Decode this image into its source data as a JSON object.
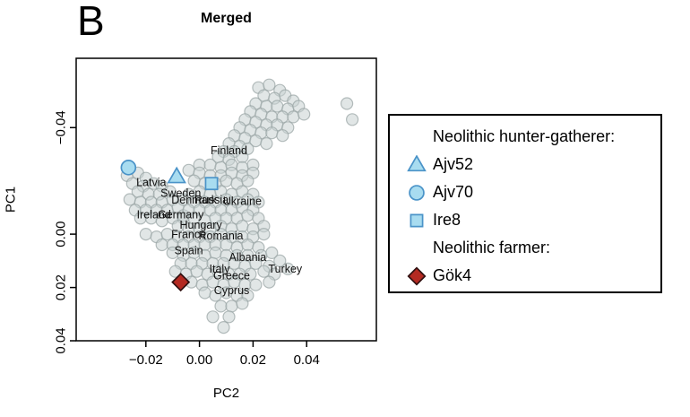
{
  "panel_label": "B",
  "title": "Merged",
  "axes": {
    "x_label": "PC2",
    "y_label": "PC1",
    "x_ticks": [
      "−0.02",
      "0.00",
      "0.02",
      "0.04"
    ],
    "x_tick_values": [
      -0.02,
      0.0,
      0.02,
      0.04
    ],
    "y_ticks": [
      "−0.04",
      "0.00",
      "0.02",
      "0.04"
    ],
    "y_tick_values": [
      -0.04,
      0.0,
      0.02,
      0.04
    ],
    "y_axis_reversed": true
  },
  "legend": {
    "rows": [
      {
        "type": "header",
        "label": "Neolithic hunter-gatherer:"
      },
      {
        "type": "item",
        "shape": "triangle",
        "label": "Ajv52"
      },
      {
        "type": "item",
        "shape": "circle",
        "label": "Ajv70"
      },
      {
        "type": "item",
        "shape": "square",
        "label": "Ire8"
      },
      {
        "type": "header",
        "label": "Neolithic farmer:"
      },
      {
        "type": "item",
        "shape": "diamond",
        "label": "Gök4"
      }
    ]
  },
  "colors": {
    "hg_fill": "#a8dcf0",
    "hg_stroke": "#4a93c8",
    "farmer_fill": "#b42a22",
    "farmer_stroke": "#301010",
    "bg_fill": "#c9d1d1",
    "bg_stroke": "#97a2a2",
    "axis": "#000000"
  },
  "chart_data": {
    "type": "scatter",
    "title": "Merged",
    "xlabel": "PC2",
    "ylabel": "PC1",
    "xlim": [
      -0.046,
      0.066
    ],
    "ylim": [
      -0.066,
      0.04
    ],
    "y_inverted": true,
    "highlight_points": [
      {
        "id": "Ajv52",
        "shape": "triangle",
        "x": -0.0085,
        "y": -0.0215,
        "group": "Neolithic hunter-gatherer"
      },
      {
        "id": "Ajv70",
        "shape": "circle",
        "x": -0.0265,
        "y": -0.025,
        "group": "Neolithic hunter-gatherer"
      },
      {
        "id": "Ire8",
        "shape": "square",
        "x": 0.0045,
        "y": -0.019,
        "group": "Neolithic hunter-gatherer"
      },
      {
        "id": "Gök4",
        "shape": "diamond",
        "x": -0.007,
        "y": 0.018,
        "group": "Neolithic farmer"
      }
    ],
    "country_labels": [
      {
        "name": "Finland",
        "x": 0.011,
        "y": -0.03
      },
      {
        "name": "Latvia",
        "x": -0.018,
        "y": -0.018
      },
      {
        "name": "Sweden",
        "x": -0.007,
        "y": -0.014
      },
      {
        "name": "Denmark",
        "x": -0.002,
        "y": -0.0115
      },
      {
        "name": "Russia",
        "x": 0.0045,
        "y": -0.0115
      },
      {
        "name": "Ukraine",
        "x": 0.016,
        "y": -0.011
      },
      {
        "name": "Ireland",
        "x": -0.017,
        "y": -0.006
      },
      {
        "name": "Germany",
        "x": -0.007,
        "y": -0.006
      },
      {
        "name": "Hungary",
        "x": 0.0005,
        "y": -0.002
      },
      {
        "name": "France",
        "x": -0.004,
        "y": 0.0015
      },
      {
        "name": "Romania",
        "x": 0.008,
        "y": 0.002
      },
      {
        "name": "Spain",
        "x": -0.004,
        "y": 0.0075
      },
      {
        "name": "Albania",
        "x": 0.018,
        "y": 0.01
      },
      {
        "name": "Italy",
        "x": 0.0075,
        "y": 0.0145
      },
      {
        "name": "Turkey",
        "x": 0.032,
        "y": 0.0145
      },
      {
        "name": "Greece",
        "x": 0.012,
        "y": 0.017
      },
      {
        "name": "Cyprus",
        "x": 0.012,
        "y": 0.0225
      }
    ],
    "background_points": [
      [
        0.022,
        -0.055
      ],
      [
        0.026,
        -0.056
      ],
      [
        0.03,
        -0.054
      ],
      [
        0.024,
        -0.052
      ],
      [
        0.028,
        -0.051
      ],
      [
        0.032,
        -0.052
      ],
      [
        0.035,
        -0.05
      ],
      [
        0.021,
        -0.049
      ],
      [
        0.025,
        -0.048
      ],
      [
        0.029,
        -0.048
      ],
      [
        0.033,
        -0.047
      ],
      [
        0.037,
        -0.048
      ],
      [
        0.019,
        -0.046
      ],
      [
        0.023,
        -0.045
      ],
      [
        0.027,
        -0.044
      ],
      [
        0.031,
        -0.044
      ],
      [
        0.035,
        -0.044
      ],
      [
        0.039,
        -0.045
      ],
      [
        0.017,
        -0.043
      ],
      [
        0.021,
        -0.042
      ],
      [
        0.025,
        -0.041
      ],
      [
        0.029,
        -0.041
      ],
      [
        0.033,
        -0.04
      ],
      [
        0.015,
        -0.04
      ],
      [
        0.019,
        -0.039
      ],
      [
        0.023,
        -0.038
      ],
      [
        0.027,
        -0.038
      ],
      [
        0.031,
        -0.037
      ],
      [
        0.013,
        -0.037
      ],
      [
        0.017,
        -0.036
      ],
      [
        0.021,
        -0.035
      ],
      [
        0.025,
        -0.034
      ],
      [
        0.011,
        -0.034
      ],
      [
        0.015,
        -0.033
      ],
      [
        0.009,
        -0.031
      ],
      [
        0.013,
        -0.031
      ],
      [
        0.018,
        -0.032
      ],
      [
        0.007,
        -0.029
      ],
      [
        0.011,
        -0.028
      ],
      [
        0.016,
        -0.029
      ],
      [
        0.055,
        -0.049
      ],
      [
        0.057,
        -0.043
      ],
      [
        0.0,
        -0.026
      ],
      [
        0.004,
        -0.026
      ],
      [
        0.008,
        -0.025
      ],
      [
        0.012,
        -0.026
      ],
      [
        0.016,
        -0.025
      ],
      [
        0.02,
        -0.026
      ],
      [
        -0.004,
        -0.024
      ],
      [
        0.0,
        -0.023
      ],
      [
        0.004,
        -0.022
      ],
      [
        0.008,
        -0.022
      ],
      [
        0.012,
        -0.023
      ],
      [
        0.016,
        -0.022
      ],
      [
        0.02,
        -0.023
      ],
      [
        -0.002,
        -0.02
      ],
      [
        0.002,
        -0.019
      ],
      [
        0.006,
        -0.019
      ],
      [
        0.01,
        -0.02
      ],
      [
        0.014,
        -0.019
      ],
      [
        0.018,
        -0.02
      ],
      [
        -0.027,
        -0.022
      ],
      [
        -0.023,
        -0.023
      ],
      [
        -0.02,
        -0.021
      ],
      [
        -0.025,
        -0.019
      ],
      [
        -0.021,
        -0.018
      ],
      [
        -0.017,
        -0.019
      ],
      [
        -0.014,
        -0.018
      ],
      [
        -0.023,
        -0.016
      ],
      [
        -0.019,
        -0.015
      ],
      [
        -0.015,
        -0.015
      ],
      [
        -0.011,
        -0.016
      ],
      [
        -0.026,
        -0.013
      ],
      [
        -0.022,
        -0.012
      ],
      [
        -0.018,
        -0.012
      ],
      [
        -0.014,
        -0.012
      ],
      [
        -0.01,
        -0.013
      ],
      [
        -0.024,
        -0.009
      ],
      [
        -0.02,
        -0.009
      ],
      [
        -0.016,
        -0.009
      ],
      [
        -0.012,
        -0.009
      ],
      [
        -0.008,
        -0.01
      ],
      [
        -0.022,
        -0.006
      ],
      [
        -0.018,
        -0.006
      ],
      [
        -0.014,
        -0.005
      ],
      [
        -0.01,
        -0.006
      ],
      [
        -0.006,
        -0.007
      ],
      [
        -0.004,
        -0.015
      ],
      [
        0.0,
        -0.016
      ],
      [
        0.004,
        -0.015
      ],
      [
        0.008,
        -0.016
      ],
      [
        0.012,
        -0.015
      ],
      [
        0.016,
        -0.016
      ],
      [
        0.02,
        -0.015
      ],
      [
        -0.006,
        -0.013
      ],
      [
        -0.002,
        -0.012
      ],
      [
        0.002,
        -0.012
      ],
      [
        0.006,
        -0.012
      ],
      [
        0.01,
        -0.013
      ],
      [
        0.014,
        -0.012
      ],
      [
        0.018,
        -0.013
      ],
      [
        0.022,
        -0.012
      ],
      [
        -0.004,
        -0.009
      ],
      [
        0.0,
        -0.009
      ],
      [
        0.004,
        -0.009
      ],
      [
        0.008,
        -0.009
      ],
      [
        0.012,
        -0.009
      ],
      [
        0.016,
        -0.01
      ],
      [
        0.02,
        -0.009
      ],
      [
        -0.006,
        -0.006
      ],
      [
        -0.002,
        -0.006
      ],
      [
        0.002,
        -0.005
      ],
      [
        0.006,
        -0.006
      ],
      [
        0.01,
        -0.006
      ],
      [
        0.014,
        -0.006
      ],
      [
        0.018,
        -0.007
      ],
      [
        0.022,
        -0.006
      ],
      [
        -0.008,
        -0.003
      ],
      [
        -0.004,
        -0.002
      ],
      [
        0.0,
        -0.002
      ],
      [
        0.004,
        -0.002
      ],
      [
        0.008,
        -0.003
      ],
      [
        0.012,
        -0.002
      ],
      [
        0.016,
        -0.003
      ],
      [
        0.02,
        -0.002
      ],
      [
        0.024,
        -0.003
      ],
      [
        -0.02,
        0.0
      ],
      [
        -0.016,
        0.001
      ],
      [
        -0.012,
        0.0
      ],
      [
        -0.008,
        0.001
      ],
      [
        -0.004,
        0.001
      ],
      [
        0.0,
        0.001
      ],
      [
        0.004,
        0.001
      ],
      [
        0.008,
        0.0
      ],
      [
        0.012,
        0.001
      ],
      [
        0.016,
        0.001
      ],
      [
        0.02,
        0.001
      ],
      [
        0.024,
        0.0
      ],
      [
        -0.014,
        0.004
      ],
      [
        -0.01,
        0.004
      ],
      [
        -0.006,
        0.004
      ],
      [
        -0.002,
        0.004
      ],
      [
        0.002,
        0.004
      ],
      [
        0.006,
        0.004
      ],
      [
        0.01,
        0.004
      ],
      [
        0.014,
        0.005
      ],
      [
        0.018,
        0.004
      ],
      [
        0.022,
        0.005
      ],
      [
        -0.01,
        0.007
      ],
      [
        -0.006,
        0.008
      ],
      [
        -0.002,
        0.007
      ],
      [
        0.002,
        0.008
      ],
      [
        0.006,
        0.007
      ],
      [
        0.01,
        0.008
      ],
      [
        0.014,
        0.008
      ],
      [
        0.018,
        0.008
      ],
      [
        0.023,
        0.008
      ],
      [
        0.027,
        0.007
      ],
      [
        -0.007,
        0.011
      ],
      [
        -0.003,
        0.011
      ],
      [
        0.001,
        0.011
      ],
      [
        0.005,
        0.011
      ],
      [
        0.009,
        0.011
      ],
      [
        0.013,
        0.011
      ],
      [
        0.017,
        0.012
      ],
      [
        0.021,
        0.011
      ],
      [
        0.026,
        0.012
      ],
      [
        0.03,
        0.01
      ],
      [
        -0.009,
        0.014
      ],
      [
        -0.005,
        0.015
      ],
      [
        -0.001,
        0.014
      ],
      [
        0.003,
        0.015
      ],
      [
        0.007,
        0.014
      ],
      [
        0.011,
        0.015
      ],
      [
        0.015,
        0.015
      ],
      [
        0.019,
        0.015
      ],
      [
        0.024,
        0.014
      ],
      [
        0.028,
        0.015
      ],
      [
        0.033,
        0.013
      ],
      [
        -0.003,
        0.018
      ],
      [
        0.001,
        0.019
      ],
      [
        0.005,
        0.018
      ],
      [
        0.009,
        0.019
      ],
      [
        0.013,
        0.018
      ],
      [
        0.017,
        0.019
      ],
      [
        0.021,
        0.019
      ],
      [
        0.026,
        0.018
      ],
      [
        0.002,
        0.022
      ],
      [
        0.006,
        0.023
      ],
      [
        0.01,
        0.022
      ],
      [
        0.014,
        0.023
      ],
      [
        0.018,
        0.023
      ],
      [
        0.008,
        0.027
      ],
      [
        0.012,
        0.027
      ],
      [
        0.016,
        0.026
      ],
      [
        0.005,
        0.031
      ],
      [
        0.011,
        0.031
      ],
      [
        0.009,
        0.035
      ]
    ]
  }
}
